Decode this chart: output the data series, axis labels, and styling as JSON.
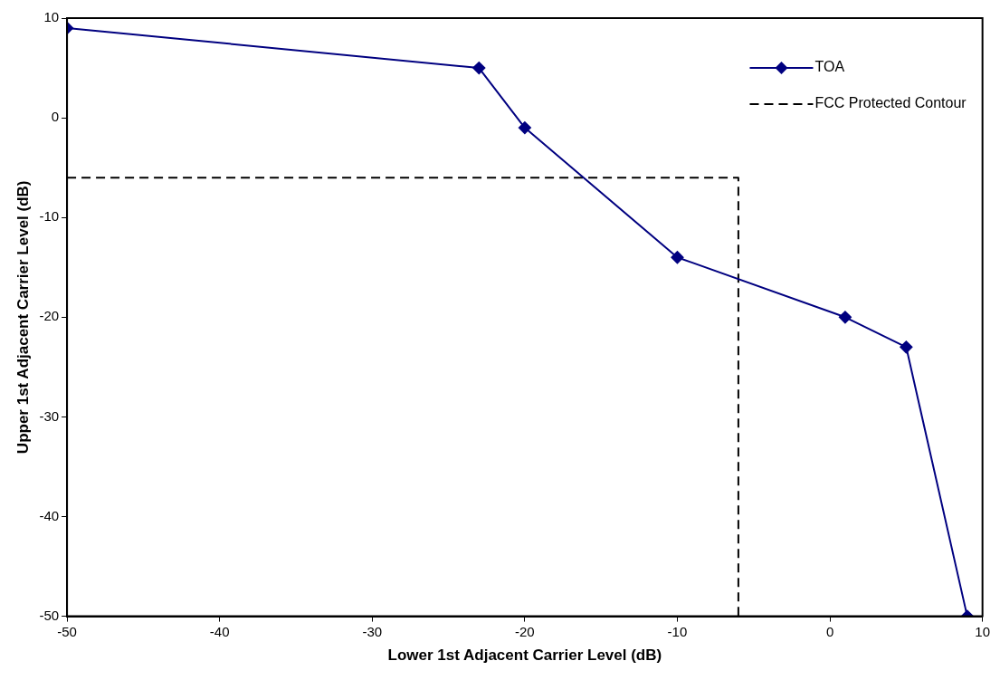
{
  "chart_data": {
    "type": "line",
    "xlabel": "Lower 1st Adjacent Carrier Level (dB)",
    "ylabel": "Upper 1st Adjacent Carrier Level (dB)",
    "series": [
      {
        "name": "TOA",
        "color": "#000080",
        "marker": "diamond",
        "line_style": "solid",
        "x": [
          -50,
          -23,
          -20,
          -10,
          1,
          5,
          9
        ],
        "values": [
          9,
          5,
          -1,
          -14,
          -20,
          -23,
          -50
        ]
      },
      {
        "name": "FCC Protected Contour",
        "color": "#000000",
        "marker": "none",
        "line_style": "dashed",
        "x": [
          -50,
          -6,
          -6
        ],
        "values": [
          -6,
          -6,
          -50
        ]
      }
    ],
    "xlim": [
      -50,
      10
    ],
    "xticks": [
      -50,
      -40,
      -30,
      -20,
      -10,
      0,
      10
    ],
    "ylim": [
      -50,
      10
    ],
    "yticks": [
      -50,
      -40,
      -30,
      -20,
      -10,
      0,
      10
    ],
    "grid": false,
    "legend": "top right"
  }
}
